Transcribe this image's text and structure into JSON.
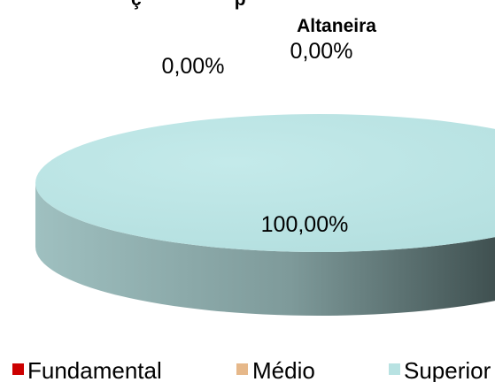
{
  "chart_data": {
    "type": "pie",
    "style": "3d",
    "title": "Altaneira",
    "title_partial_top": "ç                  p",
    "categories": [
      "Fundamental",
      "Médio",
      "Superior"
    ],
    "values": [
      0,
      0,
      100
    ],
    "data_labels": [
      "0,00%",
      "0,00%",
      "100,00%"
    ],
    "colors": [
      "#cc0000",
      "#e6b88a",
      "#b8e2e2"
    ],
    "legend_position": "bottom"
  }
}
